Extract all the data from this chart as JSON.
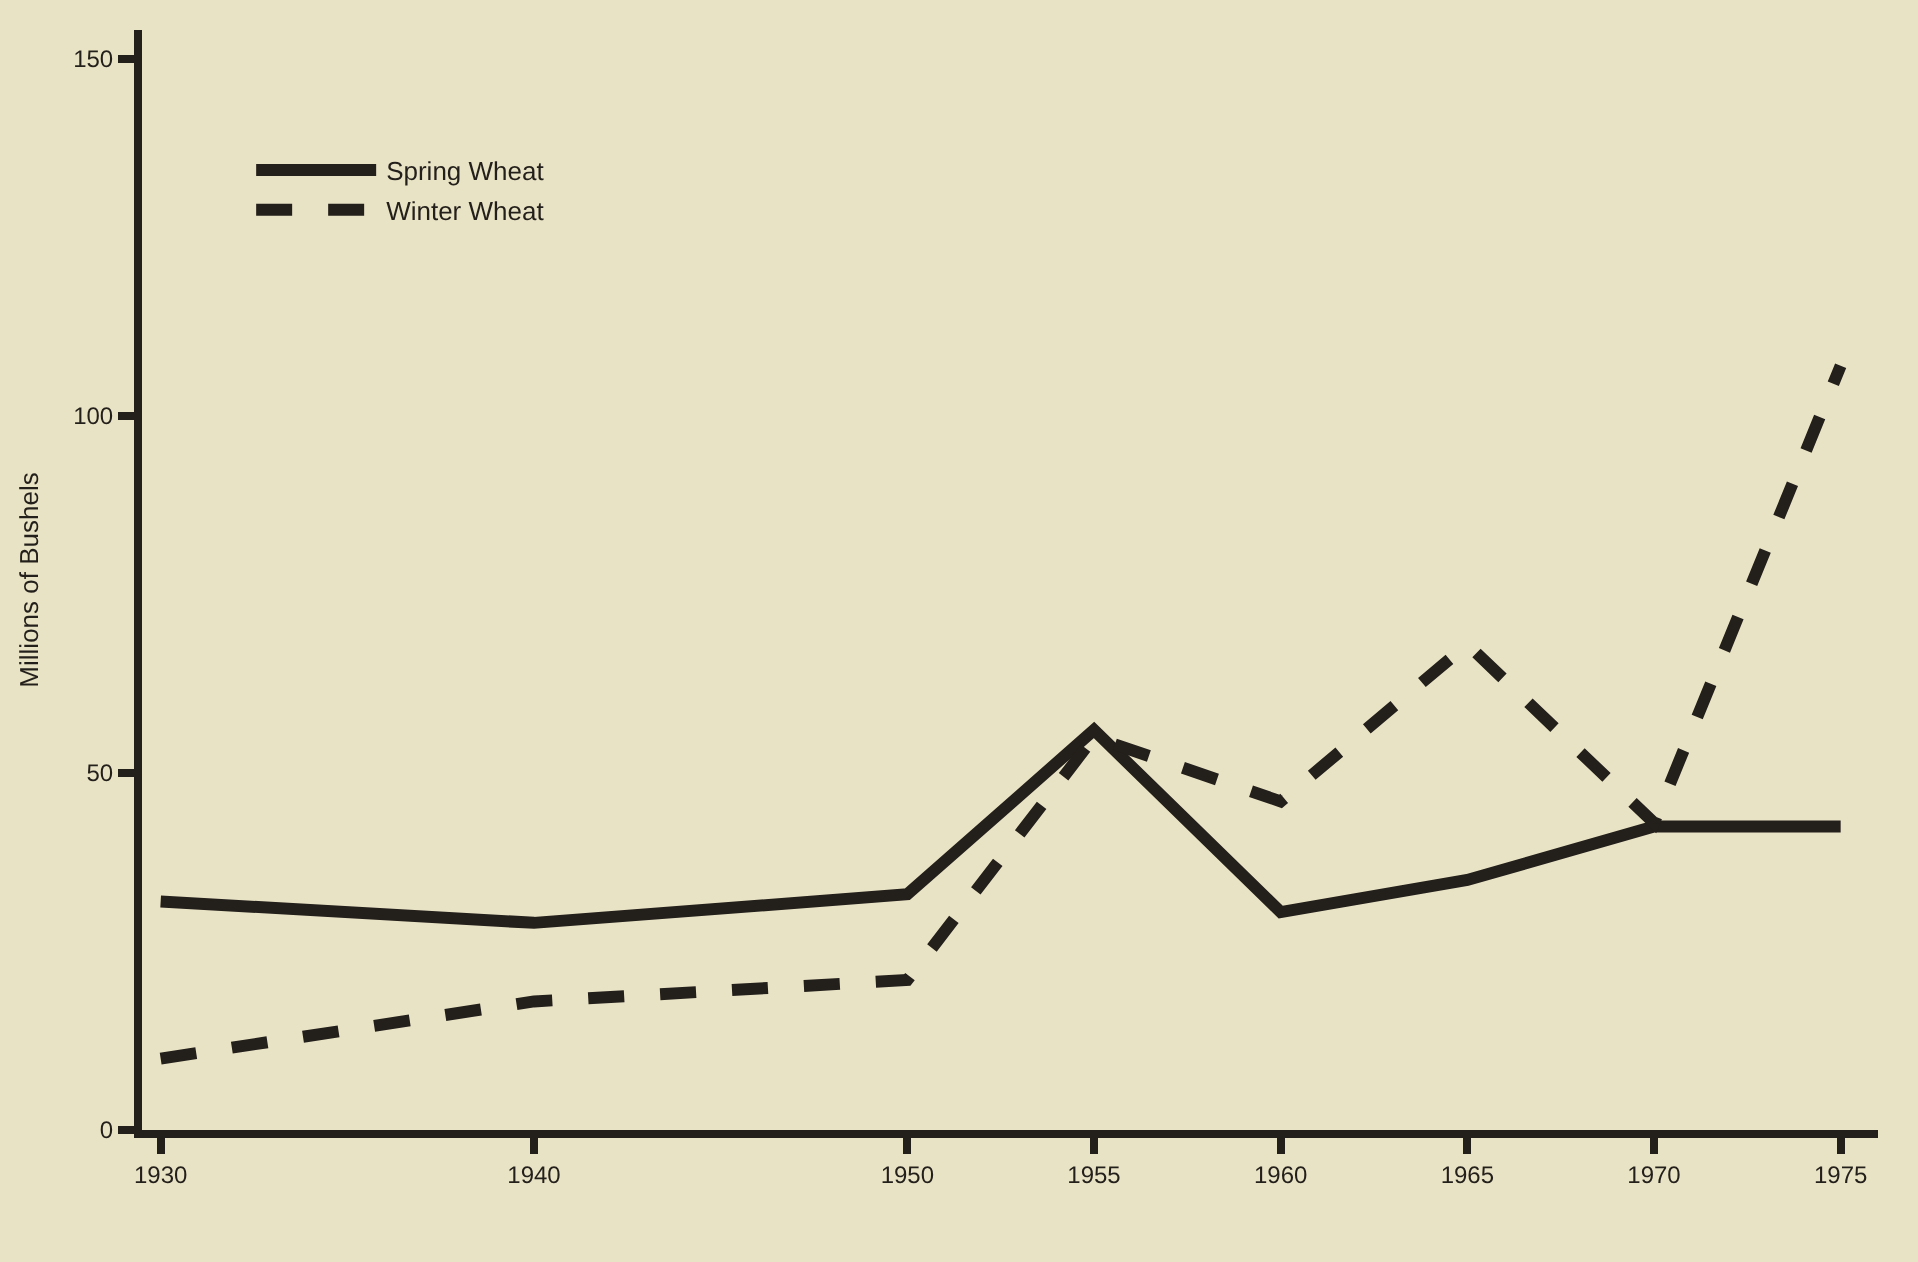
{
  "chart_data": {
    "type": "line",
    "ylabel": "Millions of Bushels",
    "x": [
      1930,
      1940,
      1950,
      1955,
      1960,
      1965,
      1970,
      1975
    ],
    "series": [
      {
        "name": "Spring Wheat",
        "color": "#231f1a",
        "line_style": "solid",
        "values": [
          32,
          29,
          33,
          56,
          30.5,
          35,
          42.5,
          42.5
        ]
      },
      {
        "name": "Winter Wheat",
        "color": "#231f1a",
        "line_style": "dashed",
        "values": [
          10,
          18,
          21,
          55,
          46,
          68,
          43,
          107
        ]
      }
    ],
    "xlim": [
      1929.5,
      1976
    ],
    "xticks": [
      1930,
      1940,
      1950,
      1955,
      1960,
      1965,
      1970,
      1975
    ],
    "ylim": [
      0,
      154
    ],
    "yticks": [
      0,
      50,
      100,
      150
    ],
    "grid": false,
    "legend": "top left",
    "marker": "none"
  }
}
